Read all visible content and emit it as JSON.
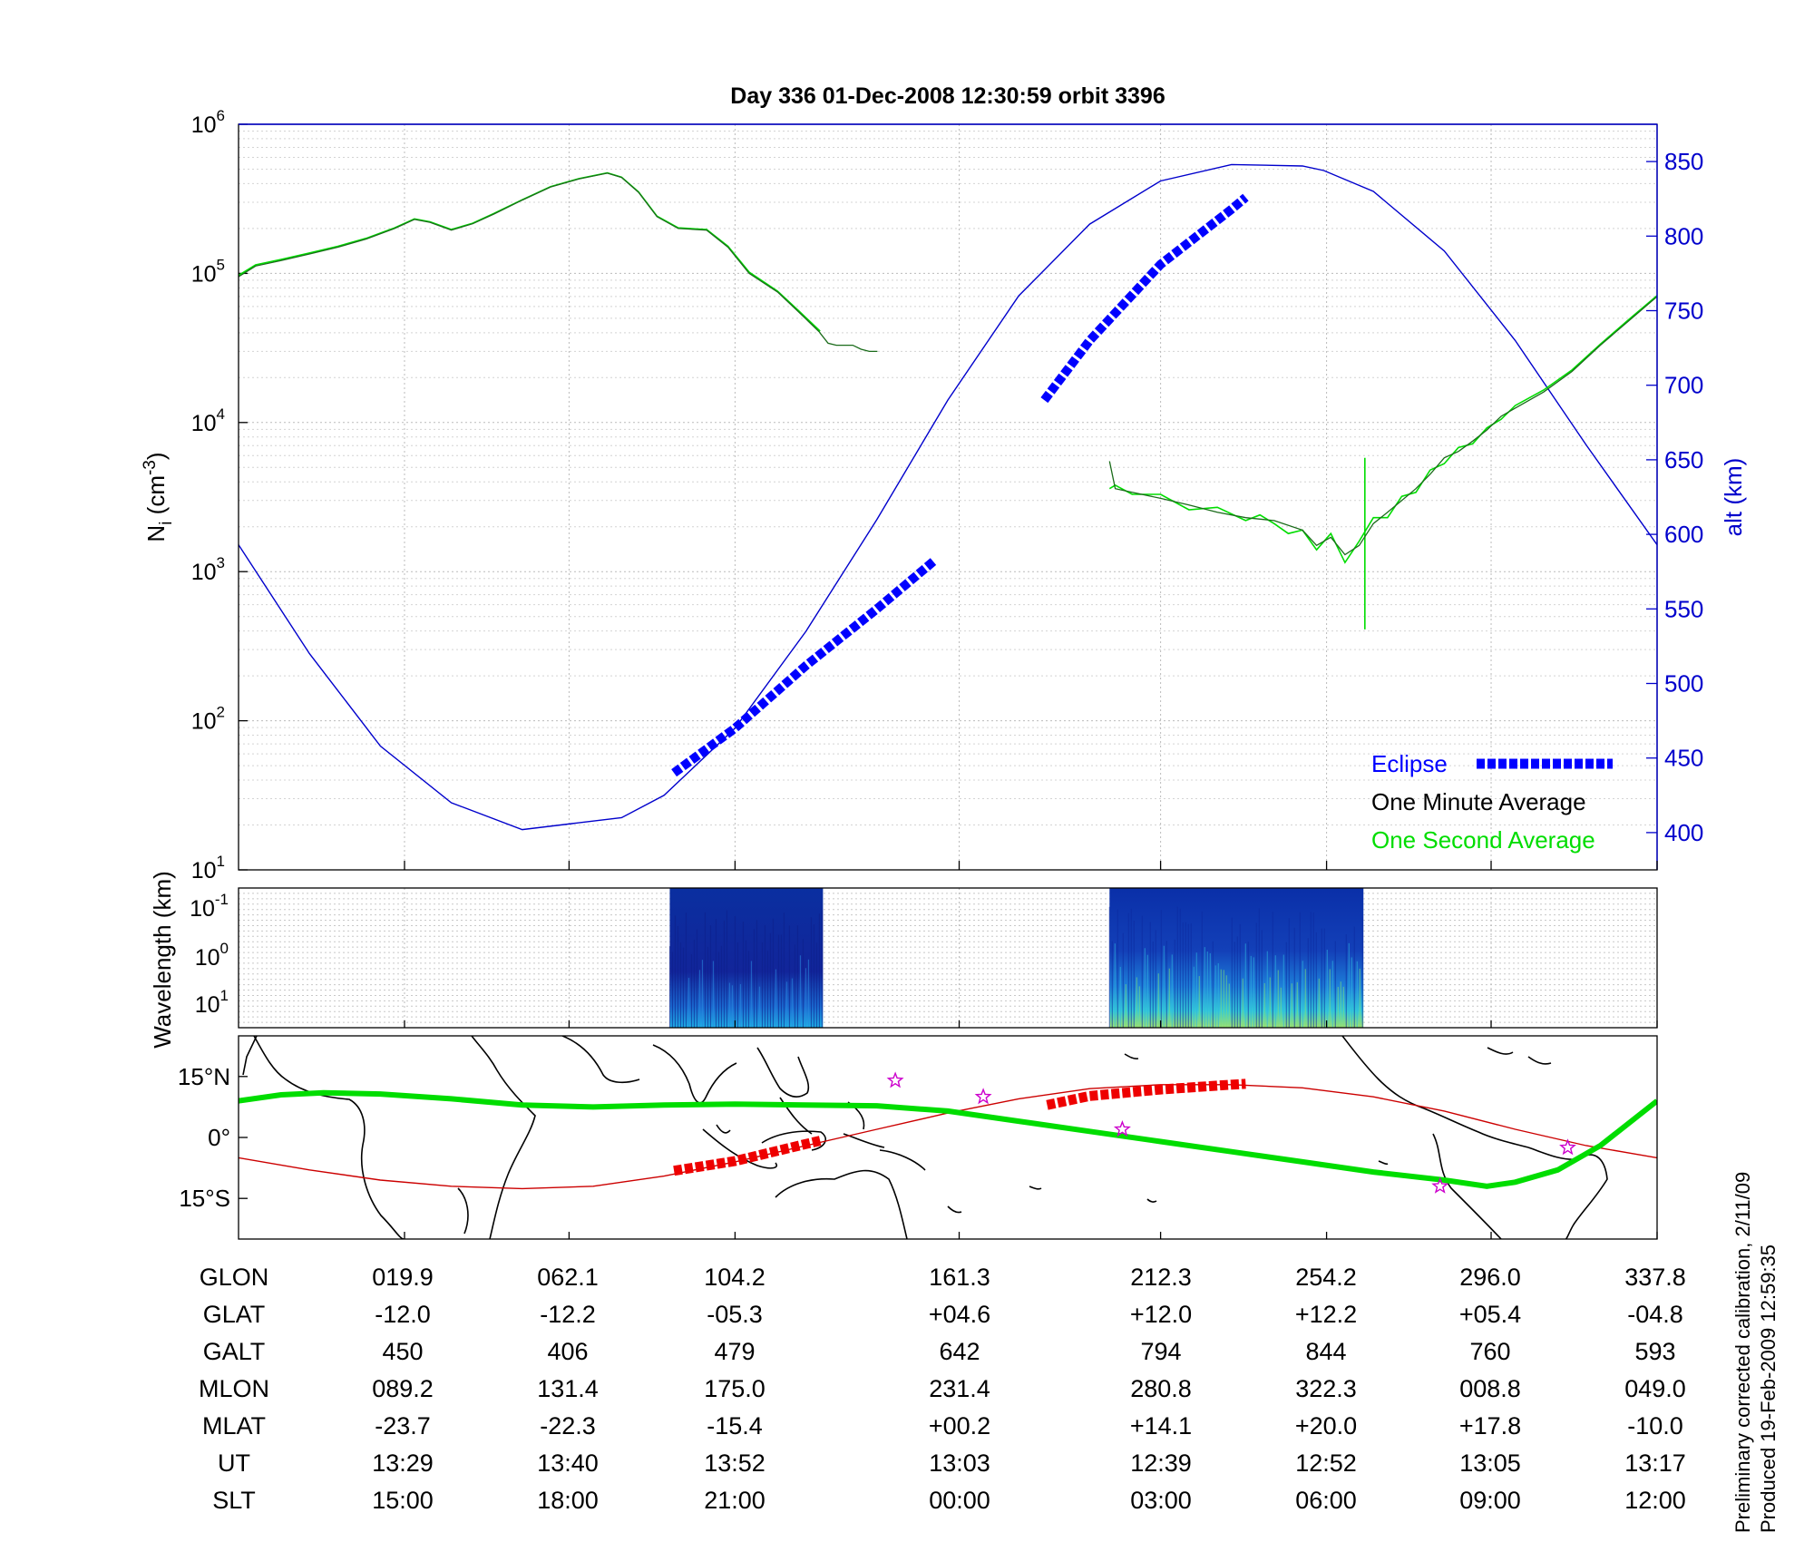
{
  "title": "Day 336  01-Dec-2008 12:30:59   orbit 3396",
  "colors": {
    "altitude": "#0000cc",
    "eclipse": "#0000ff",
    "minute_avg": "#000000",
    "second_avg": "#00dd00",
    "ground_track": "#00dd00",
    "magnetic_track": "#cc0000",
    "eclipse_track": "#ee0000",
    "stars": "#cc00cc"
  },
  "chart_data": [
    {
      "type": "line",
      "name": "ion-density-altitude",
      "title": "Day 336  01-Dec-2008 12:30:59   orbit 3396",
      "ylabel": "N_i (cm^-3)",
      "ylabel_parts": {
        "main": "N",
        "sub": "i",
        "open": " (cm",
        "sup": "-3",
        "close": ")"
      },
      "yscale": "log",
      "ylim": [
        10,
        1000000
      ],
      "yticks": [
        {
          "base": "10",
          "exp": "1"
        },
        {
          "base": "10",
          "exp": "2"
        },
        {
          "base": "10",
          "exp": "3"
        },
        {
          "base": "10",
          "exp": "4"
        },
        {
          "base": "10",
          "exp": "5"
        },
        {
          "base": "10",
          "exp": "6"
        }
      ],
      "y2label": "alt (km)",
      "y2lim": [
        375,
        875
      ],
      "y2ticks": [
        "400",
        "450",
        "500",
        "550",
        "600",
        "650",
        "700",
        "750",
        "800",
        "850"
      ],
      "xlim": [
        0,
        1
      ],
      "grid": true,
      "legend_position": "bottom-right",
      "legend": [
        {
          "label": "Eclipse",
          "color": "#0000ff"
        },
        {
          "label": "One Minute Average",
          "color": "#000000"
        },
        {
          "label": "One Second Average",
          "color": "#00dd00"
        }
      ],
      "series": [
        {
          "name": "One Minute Average",
          "segment_1": {
            "x": [
              0.0,
              0.012,
              0.03,
              0.05,
              0.07,
              0.09,
              0.11,
              0.124,
              0.135,
              0.15,
              0.165,
              0.18,
              0.2,
              0.22,
              0.24,
              0.26,
              0.27,
              0.282,
              0.295,
              0.31,
              0.33,
              0.345,
              0.36,
              0.38,
              0.395,
              0.41
            ],
            "y": [
              95000,
              112000,
              122000,
              135000,
              150000,
              170000,
              200000,
              230000,
              220000,
              195000,
              215000,
              250000,
              310000,
              380000,
              430000,
              470000,
              440000,
              350000,
              240000,
              200000,
              195000,
              150000,
              100000,
              75000,
              55000,
              40000
            ]
          },
          "segment_1_tail": {
            "x": [
              0.41,
              0.42,
              0.43,
              0.45,
              0.46,
              0.47,
              0.48,
              0.49,
              0.5,
              0.51,
              0.52,
              0.53,
              0.545,
              0.555,
              0.56
            ],
            "y": [
              40000,
              34000,
              33000,
              33000,
              31000,
              30000,
              30000,
              30500,
              31000,
              30000,
              29500,
              30000,
              30500,
              31000,
              31000
            ]
          },
          "segment_2": {
            "x": [
              0.614,
              0.618,
              0.63,
              0.65,
              0.67,
              0.69,
              0.71,
              0.73,
              0.75,
              0.76,
              0.77,
              0.78,
              0.79,
              0.8,
              0.81,
              0.82,
              0.83,
              0.84,
              0.85,
              0.86,
              0.87,
              0.88,
              0.89,
              0.9,
              0.92,
              0.94,
              0.96,
              0.98,
              1.0
            ],
            "y": [
              5500,
              3600,
              3400,
              3100,
              2800,
              2500,
              2300,
              2200,
              1900,
              1500,
              1700,
              1300,
              1500,
              2100,
              2500,
              3000,
              3600,
              4500,
              5800,
              6400,
              7500,
              8900,
              11000,
              12500,
              16000,
              22000,
              33000,
              48000,
              70000
            ]
          }
        },
        {
          "name": "One Second Average",
          "segment_1": {
            "x": [
              0.0,
              0.012,
              0.03,
              0.05,
              0.07,
              0.09,
              0.11,
              0.124,
              0.135,
              0.15,
              0.165,
              0.18,
              0.2,
              0.22,
              0.24,
              0.26,
              0.27,
              0.282,
              0.295,
              0.31,
              0.33,
              0.345,
              0.36,
              0.38,
              0.395,
              0.41
            ],
            "y": [
              97000,
              114000,
              124000,
              137000,
              152000,
              172000,
              202000,
              232000,
              222000,
              197000,
              217000,
              252000,
              312000,
              382000,
              432000,
              472000,
              442000,
              352000,
              242000,
              202000,
              197000,
              152000,
              102000,
              76000,
              56000,
              41000
            ]
          },
          "segment_2": {
            "x": [
              0.614,
              0.618,
              0.63,
              0.65,
              0.67,
              0.69,
              0.71,
              0.72,
              0.73,
              0.74,
              0.75,
              0.76,
              0.77,
              0.78,
              0.79,
              0.8,
              0.81,
              0.82,
              0.83,
              0.84,
              0.85,
              0.86,
              0.87,
              0.88,
              0.89,
              0.9,
              0.92,
              0.94,
              0.96,
              0.98,
              1.0
            ],
            "y": [
              3600,
              3800,
              3300,
              3300,
              2600,
              2700,
              2200,
              2400,
              2100,
              1800,
              1900,
              1400,
              1800,
              1150,
              1600,
              2300,
              2300,
              3200,
              3400,
              4800,
              5300,
              6800,
              7200,
              9200,
              10500,
              13000,
              16500,
              22500,
              33500,
              49000,
              71000
            ]
          },
          "spike": {
            "x": 0.794,
            "y_top": 5800,
            "y_bottom": 410
          }
        },
        {
          "name": "Altitude",
          "axis": "y2",
          "x": [
            0.0,
            0.05,
            0.1,
            0.15,
            0.2,
            0.235,
            0.27,
            0.3,
            0.35,
            0.4,
            0.45,
            0.5,
            0.55,
            0.6,
            0.65,
            0.7,
            0.75,
            0.765,
            0.8,
            0.85,
            0.9,
            0.95,
            1.0
          ],
          "y": [
            593,
            520,
            458,
            420,
            402,
            406,
            410,
            425,
            470,
            535,
            610,
            690,
            760,
            808,
            837,
            848,
            847,
            844,
            830,
            790,
            730,
            660,
            593
          ]
        },
        {
          "name": "Eclipse",
          "axis": "y2",
          "segment_1": {
            "x": [
              0.307,
              0.35,
              0.4,
              0.45,
              0.49
            ],
            "y": [
              440,
              470,
              512,
              550,
              582
            ]
          },
          "segment_2": {
            "x": [
              0.568,
              0.6,
              0.65,
              0.7,
              0.71
            ],
            "y": [
              690,
              730,
              781,
              818,
              826
            ]
          }
        }
      ]
    },
    {
      "type": "heatmap",
      "name": "wavelength-spectrogram",
      "ylabel": "Wavelength (km)",
      "yticks": [
        {
          "base": "10",
          "exp": "-1"
        },
        {
          "base": "10",
          "exp": "0"
        },
        {
          "base": "10",
          "exp": "1"
        }
      ],
      "yscale": "log",
      "blocks": [
        {
          "x_start": 0.304,
          "x_end": 0.412,
          "intensity": "low"
        },
        {
          "x_start": 0.614,
          "x_end": 0.793,
          "intensity": "medium"
        }
      ]
    },
    {
      "type": "line",
      "name": "ground-track-map",
      "yticks": [
        "15°N",
        "0°",
        "15°S"
      ],
      "ylim": [
        -25,
        25
      ],
      "series": [
        {
          "name": "Ground track",
          "x": [
            0.0,
            0.03,
            0.06,
            0.1,
            0.15,
            0.2,
            0.25,
            0.3,
            0.35,
            0.4,
            0.45,
            0.5,
            0.55,
            0.6,
            0.65,
            0.7,
            0.75,
            0.8,
            0.85,
            0.88,
            0.9,
            0.93,
            0.96,
            1.0
          ],
          "y": [
            9,
            10.5,
            11,
            10.7,
            9.5,
            8,
            7.5,
            8,
            8.2,
            8,
            7.8,
            6.5,
            4,
            1.5,
            -1,
            -3.5,
            -6,
            -8.5,
            -10.5,
            -12,
            -11,
            -8,
            -2,
            9
          ]
        },
        {
          "name": "Magnetic track",
          "x": [
            0.0,
            0.05,
            0.1,
            0.15,
            0.2,
            0.25,
            0.3,
            0.35,
            0.4,
            0.45,
            0.5,
            0.55,
            0.6,
            0.65,
            0.7,
            0.75,
            0.8,
            0.85,
            0.9,
            0.95,
            1.0
          ],
          "y": [
            -5,
            -8,
            -10.5,
            -12,
            -12.6,
            -12,
            -9.5,
            -6,
            -2,
            2,
            6,
            9.5,
            12,
            13,
            13,
            12.2,
            10,
            6.5,
            2,
            -2,
            -5
          ]
        },
        {
          "name": "Eclipse track",
          "segment_1": {
            "x": [
              0.307,
              0.35,
              0.4,
              0.41
            ],
            "y": [
              -8.2,
              -5.8,
              -1.6,
              -0.8
            ]
          },
          "segment_2": {
            "x": [
              0.57,
              0.6,
              0.65,
              0.7,
              0.71
            ],
            "y": [
              8,
              10.2,
              11.8,
              13,
              13.2
            ]
          }
        },
        {
          "name": "Stars",
          "x": [
            0.463,
            0.525,
            0.623,
            0.847,
            0.937
          ],
          "y": [
            14,
            10,
            2,
            -12,
            -2.5
          ]
        }
      ]
    }
  ],
  "table": {
    "row_labels": [
      "GLON",
      "GLAT",
      "GALT",
      "MLON",
      "MLAT",
      "UT",
      "SLT"
    ],
    "columns": [
      [
        "019.9",
        "-12.0",
        "450",
        "089.2",
        "-23.7",
        "13:29",
        "15:00"
      ],
      [
        "062.1",
        "-12.2",
        "406",
        "131.4",
        "-22.3",
        "13:40",
        "18:00"
      ],
      [
        "104.2",
        "-05.3",
        "479",
        "175.0",
        "-15.4",
        "13:52",
        "21:00"
      ],
      [
        "161.3",
        "+04.6",
        "642",
        "231.4",
        "+00.2",
        "13:03",
        "00:00"
      ],
      [
        "212.3",
        "+12.0",
        "794",
        "280.8",
        "+14.1",
        "12:39",
        "03:00"
      ],
      [
        "254.2",
        "+12.2",
        "844",
        "322.3",
        "+20.0",
        "12:52",
        "06:00"
      ],
      [
        "296.0",
        "+05.4",
        "760",
        "008.8",
        "+17.8",
        "13:05",
        "09:00"
      ],
      [
        "337.8",
        "-04.8",
        "593",
        "049.0",
        "-10.0",
        "13:17",
        "12:00"
      ]
    ]
  },
  "footnote": {
    "line1": "Preliminary corrected calibration, 2/11/09",
    "line2": "Produced 19-Feb-2009 12:59:35"
  }
}
